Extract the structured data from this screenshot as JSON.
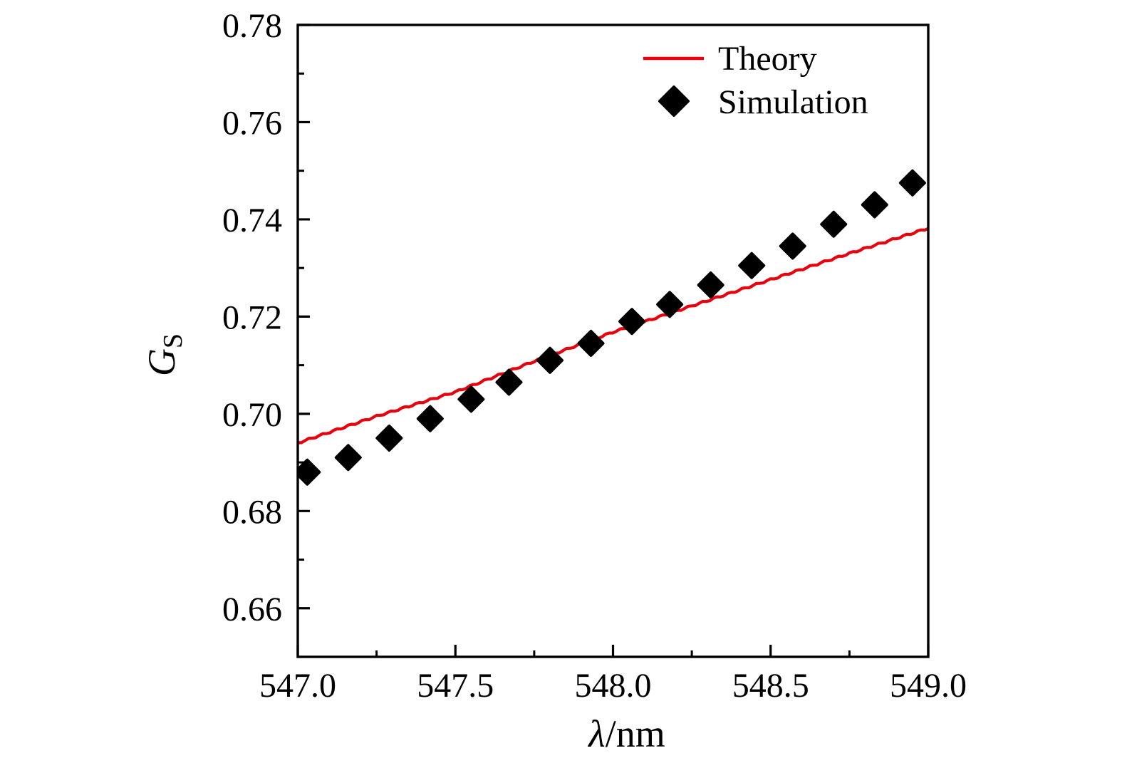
{
  "figure": {
    "background": "#ffffff",
    "axis_color": "#000000"
  },
  "chart_data": {
    "type": "line",
    "title": "",
    "xlabel_symbol": "λ",
    "xlabel_rest": "/nm",
    "ylabel_main": "G",
    "ylabel_sub": "S",
    "xlim": [
      547.0,
      549.0
    ],
    "ylim": [
      0.65,
      0.78
    ],
    "grid": false,
    "legend_position": "top-right-inside",
    "x_major_ticks": [
      547.0,
      547.5,
      548.0,
      548.5,
      549.0
    ],
    "x_tick_labels": [
      "547.0",
      "547.5",
      "548.0",
      "548.5",
      "549.0"
    ],
    "x_minor_ticks": [
      547.25,
      547.75,
      548.25,
      548.75
    ],
    "y_major_ticks": [
      0.66,
      0.68,
      0.7,
      0.72,
      0.74,
      0.76,
      0.78
    ],
    "y_tick_labels": [
      "0.66",
      "0.68",
      "0.70",
      "0.72",
      "0.74",
      "0.76",
      "0.78"
    ],
    "y_minor_ticks": [
      0.67,
      0.69,
      0.71,
      0.73,
      0.75,
      0.77
    ],
    "series": [
      {
        "name": "Theory",
        "type": "line",
        "color": "#e8000d",
        "line_style": "wavy",
        "x": [
          547.0,
          547.25,
          547.5,
          547.75,
          548.0,
          548.25,
          548.5,
          548.75,
          549.0
        ],
        "y": [
          0.694,
          0.6995,
          0.7045,
          0.7108,
          0.7168,
          0.7222,
          0.7276,
          0.733,
          0.7382
        ]
      },
      {
        "name": "Simulation",
        "type": "scatter",
        "marker": "diamond",
        "color": "#000000",
        "x": [
          547.03,
          547.16,
          547.29,
          547.42,
          547.55,
          547.67,
          547.8,
          547.93,
          548.06,
          548.18,
          548.31,
          548.44,
          548.57,
          548.7,
          548.83,
          548.95
        ],
        "y": [
          0.688,
          0.691,
          0.695,
          0.699,
          0.703,
          0.7065,
          0.711,
          0.7145,
          0.719,
          0.7225,
          0.7265,
          0.7305,
          0.7345,
          0.739,
          0.743,
          0.7475
        ]
      }
    ]
  },
  "legend": {
    "items": [
      {
        "label": "Theory",
        "swatch": "line",
        "color": "#e8000d"
      },
      {
        "label": "Simulation",
        "swatch": "diamond",
        "color": "#000000"
      }
    ]
  }
}
